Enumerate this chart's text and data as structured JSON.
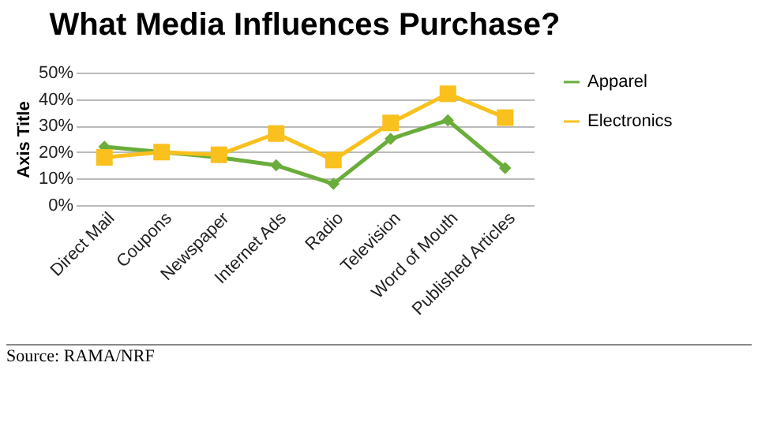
{
  "chart_data": {
    "type": "line",
    "title": "What Media Influences Purchase?",
    "ylabel": "Axis Title",
    "categories": [
      "Direct Mail",
      "Coupons",
      "Newspaper",
      "Internet Ads",
      "Radio",
      "Television",
      "Word of Mouth",
      "Published Articles"
    ],
    "series": [
      {
        "name": "Apparel",
        "color": "#6aad3a",
        "marker": "diamond",
        "values": [
          22,
          20,
          18,
          15,
          8,
          25,
          32,
          14
        ]
      },
      {
        "name": "Electronics",
        "color": "#f9c01e",
        "marker": "square",
        "values": [
          18,
          20,
          19,
          27,
          17,
          31,
          42,
          33
        ]
      }
    ],
    "ylim": [
      0,
      50
    ],
    "yticks": [
      {
        "value": 0,
        "label": "0%"
      },
      {
        "value": 10,
        "label": "10%"
      },
      {
        "value": 20,
        "label": "20%"
      },
      {
        "value": 30,
        "label": "30%"
      },
      {
        "value": 40,
        "label": "40%"
      },
      {
        "value": 50,
        "label": "50%"
      }
    ],
    "grid": "y",
    "legend": "right",
    "line_style": "solid",
    "annotations": [
      "Source: RAMA/NRF"
    ]
  }
}
